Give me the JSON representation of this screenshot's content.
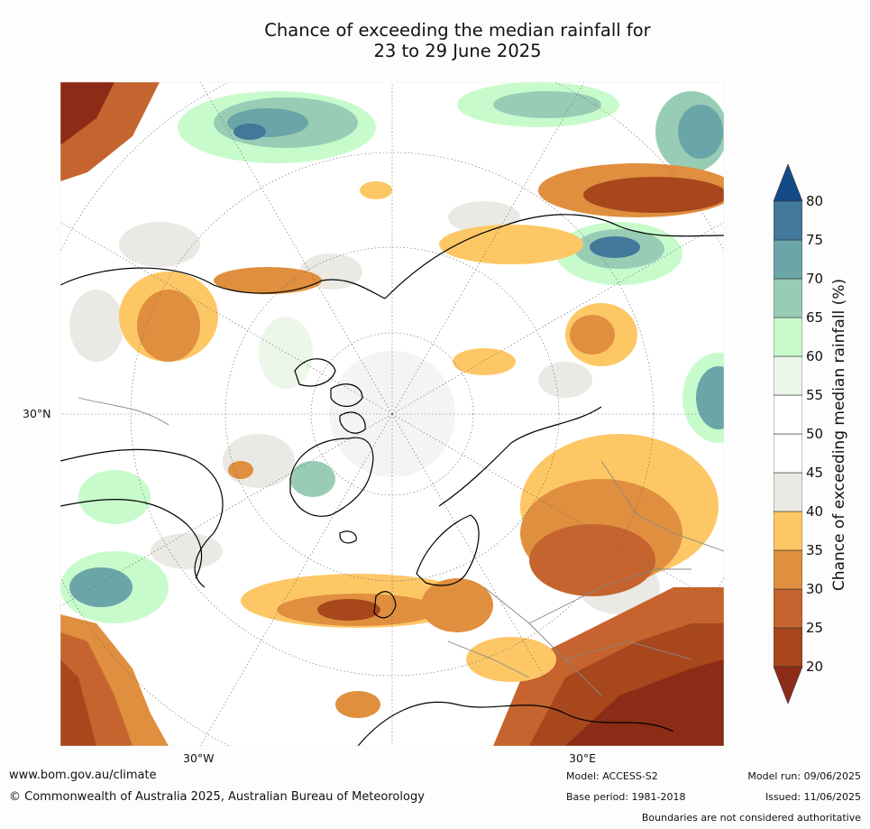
{
  "title_line1": "Chance of exceeding the median rainfall for",
  "title_line2": "23 to 29 June 2025",
  "map": {
    "projection": "north polar stereographic",
    "labels": {
      "lon_west": "30°W",
      "lon_east": "30°E",
      "lat": "30°N"
    },
    "colors": {
      "ocean_background": "#ffffff",
      "coastline": "#000000",
      "boundaries": "#888888",
      "graticule": "#666666"
    }
  },
  "colorbar": {
    "title": "Chance of exceeding median rainfall (%)",
    "ticks": [
      "20",
      "25",
      "30",
      "35",
      "40",
      "45",
      "50",
      "55",
      "60",
      "65",
      "70",
      "75",
      "80"
    ],
    "extend": "both",
    "colors": {
      "below_20": "#8c2c17",
      "20_25": "#a8461c",
      "25_30": "#c5642e",
      "30_35": "#e08f3f",
      "35_40": "#fec766",
      "40_45": "#ebe9e4",
      "45_50": "#ffffff",
      "50_55": "#ffffff",
      "55_60": "#ecf7ea",
      "60_65": "#c8fbcc",
      "65_70": "#99ccb5",
      "70_75": "#6aa6a8",
      "75_80": "#42789a",
      "above_80": "#134b86"
    }
  },
  "footer": {
    "url": "www.bom.gov.au/climate",
    "copyright": "© Commonwealth of Australia 2025, Australian Bureau of Meteorology",
    "model": "Model: ACCESS-S2",
    "base_period": "Base period: 1981-2018",
    "model_run": "Model run: 09/06/2025",
    "issued": "Issued: 11/06/2025",
    "disclaimer": "Boundaries are not considered authoritative"
  }
}
